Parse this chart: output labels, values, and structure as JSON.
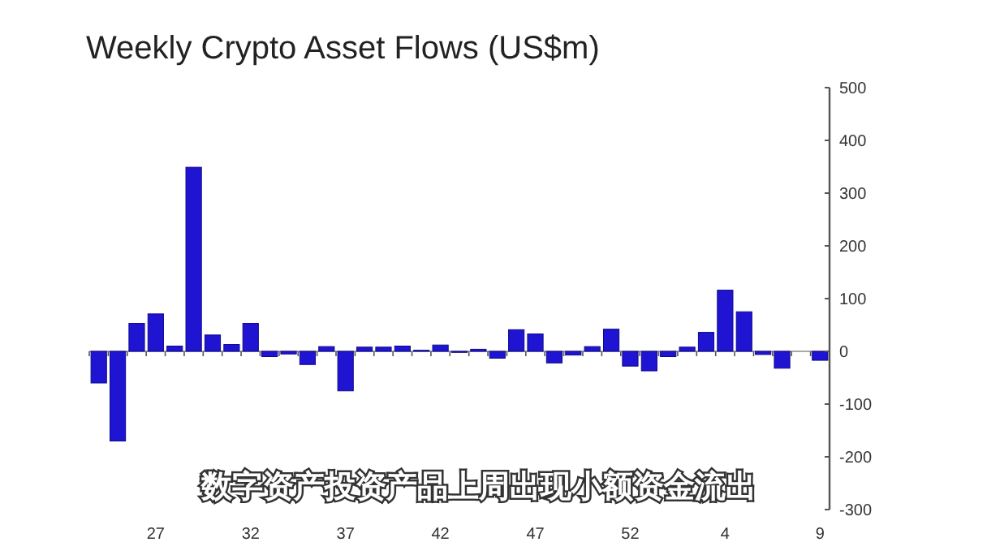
{
  "chart_data": {
    "type": "bar",
    "title": "Weekly Crypto Asset Flows (US$m)",
    "categories": [
      null,
      null,
      null,
      "27",
      null,
      null,
      null,
      null,
      "32",
      null,
      null,
      null,
      null,
      "37",
      null,
      null,
      null,
      null,
      "42",
      null,
      null,
      null,
      null,
      "47",
      null,
      null,
      null,
      null,
      "52",
      null,
      null,
      null,
      null,
      "4",
      null,
      null,
      null,
      null,
      "9"
    ],
    "values": [
      -60,
      -170,
      53,
      71,
      10,
      349,
      31,
      13,
      53,
      -10,
      -5,
      -25,
      9,
      -75,
      8,
      8,
      10,
      2,
      12,
      -2,
      4,
      -13,
      41,
      33,
      -22,
      -7,
      9,
      42,
      -28,
      -37,
      -10,
      8,
      36,
      116,
      75,
      -6,
      -32,
      0,
      -17
    ],
    "color": "#1e14d2",
    "ylim": [
      -300,
      500
    ],
    "yticks": [
      -300,
      -200,
      -100,
      0,
      100,
      200,
      300,
      400,
      500
    ],
    "annotations": [
      "数字资产投资产品上周出现小额资金流出"
    ]
  }
}
